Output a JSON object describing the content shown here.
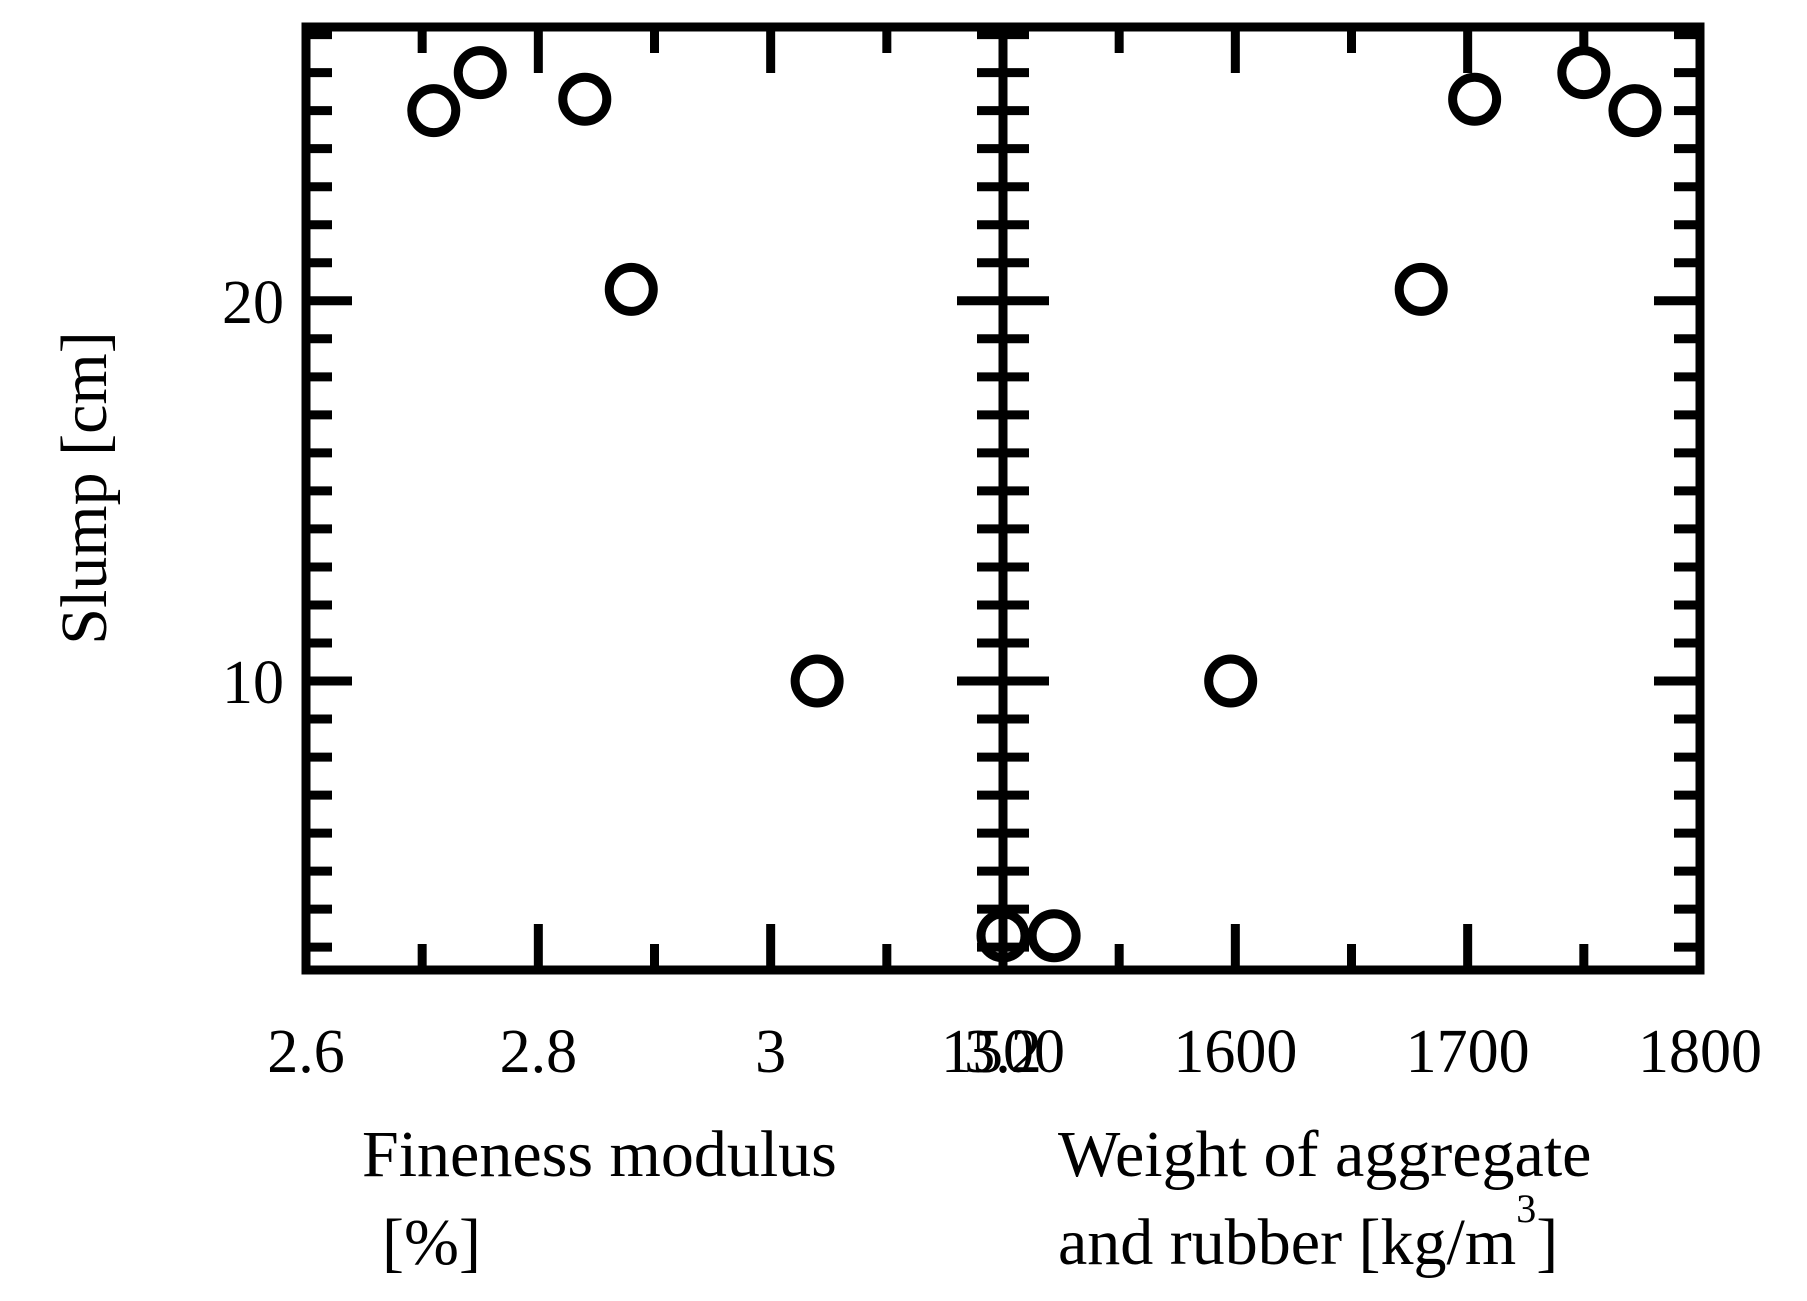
{
  "chart_data": [
    {
      "type": "scatter",
      "xlabel_lines": [
        "Fineness modulus",
        "[%]"
      ],
      "ylabel": "Slump [cm]",
      "xlim": [
        2.6,
        3.2
      ],
      "ylim": [
        2.4,
        27.2
      ],
      "xticks": [
        2.6,
        2.8,
        3.0,
        3.2
      ],
      "xtick_labels": [
        "2.6",
        "2.8",
        "3",
        "3.2"
      ],
      "yticks": [
        10,
        20
      ],
      "ytick_labels": [
        "10",
        "20"
      ],
      "grid": false,
      "marker": "open-circle",
      "series": [
        {
          "points": [
            {
              "x": 2.71,
              "y": 25.0
            },
            {
              "x": 2.75,
              "y": 26.0
            },
            {
              "x": 2.84,
              "y": 25.3
            },
            {
              "x": 2.88,
              "y": 20.3
            },
            {
              "x": 3.04,
              "y": 10.0
            },
            {
              "x": 3.2,
              "y": 3.3
            }
          ]
        }
      ]
    },
    {
      "type": "scatter",
      "xlabel_lines": [
        "Weight of aggregate",
        "and rubber [kg/m",
        "3",
        "]"
      ],
      "xlim": [
        1500,
        1800
      ],
      "ylim": [
        2.4,
        27.2
      ],
      "xticks": [
        1500,
        1600,
        1700,
        1800
      ],
      "xtick_labels": [
        "1500",
        "1600",
        "1700",
        "1800"
      ],
      "yticks": [
        10,
        20
      ],
      "grid": false,
      "marker": "open-circle",
      "series": [
        {
          "points": [
            {
              "x": 1522,
              "y": 3.3
            },
            {
              "x": 1598,
              "y": 10.0
            },
            {
              "x": 1680,
              "y": 20.3
            },
            {
              "x": 1703,
              "y": 25.3
            },
            {
              "x": 1750,
              "y": 26.0
            },
            {
              "x": 1772,
              "y": 25.0
            }
          ]
        }
      ]
    }
  ]
}
